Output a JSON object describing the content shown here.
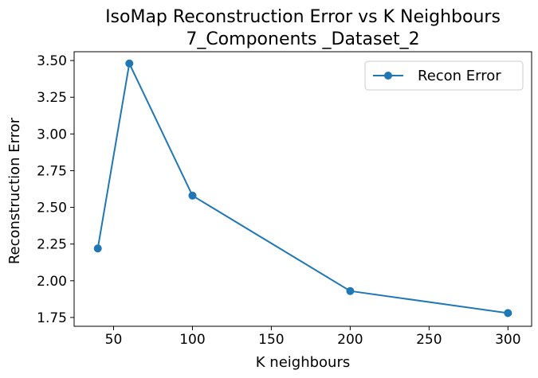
{
  "chart_data": {
    "type": "line",
    "title": "IsoMap Reconstruction Error vs K Neighbours",
    "subtitle": "7_Components _Dataset_2",
    "xlabel": "K neighbours",
    "ylabel": "Reconstruction Error",
    "xlim": [
      25,
      315
    ],
    "ylim": [
      1.69,
      3.56
    ],
    "xticks": [
      50,
      100,
      150,
      200,
      250,
      300
    ],
    "yticks": [
      1.75,
      2.0,
      2.25,
      2.5,
      2.75,
      3.0,
      3.25,
      3.5
    ],
    "xtick_labels": [
      "50",
      "100",
      "150",
      "200",
      "250",
      "300"
    ],
    "ytick_labels": [
      "1.75",
      "2.00",
      "2.25",
      "2.50",
      "2.75",
      "3.00",
      "3.25",
      "3.50"
    ],
    "grid": false,
    "legend_position": "top-right",
    "series": [
      {
        "name": "Recon Error",
        "color": "#1f77b4",
        "marker": "circle",
        "x": [
          40,
          60,
          100,
          200,
          300
        ],
        "y": [
          2.22,
          3.48,
          2.58,
          1.93,
          1.78
        ]
      }
    ]
  }
}
